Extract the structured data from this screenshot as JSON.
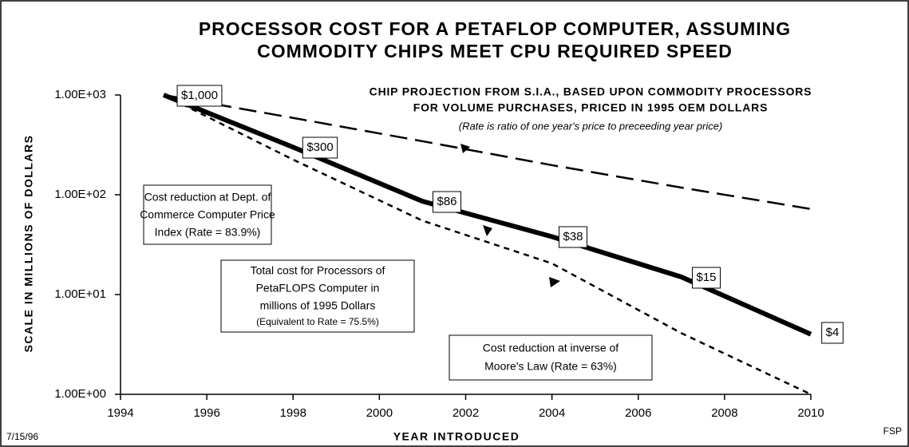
{
  "chart_data": {
    "type": "line",
    "title": [
      "PROCESSOR COST FOR A PETAFLOP COMPUTER, ASSUMING",
      "COMMODITY CHIPS MEET CPU REQUIRED SPEED"
    ],
    "x_label": "YEAR  INTRODUCED",
    "y_label": "SCALE IN MILLIONS OF DOLLARS",
    "date": "7/15/96",
    "author": "FSP",
    "subtitle": [
      "CHIP PROJECTION FROM S.I.A., BASED UPON COMMODITY PROCESSORS",
      "FOR VOLUME PURCHASES, PRICED IN 1995 OEM DOLLARS"
    ],
    "note": "(Rate is ratio of one year's price to preceeding year price)",
    "annotations": [
      {
        "lines": [
          "Cost reduction at Dept. of",
          "Commerce Computer Price",
          "Index  (Rate = 83.9%)"
        ]
      },
      {
        "lines": [
          "Total cost for Processors of",
          "PetaFLOPS Computer in",
          "millions of 1995 Dollars",
          "(Equivalent to Rate = 75.5%)"
        ]
      },
      {
        "lines": [
          "Cost reduction at inverse of",
          "Moore's Law  (Rate = 63%)"
        ]
      }
    ],
    "xlim": [
      1994,
      2010
    ],
    "xticks": [
      1994,
      1996,
      1998,
      2000,
      2002,
      2004,
      2006,
      2008,
      2010
    ],
    "ylim": [
      1,
      1000
    ],
    "log_y": true,
    "yticks": [
      {
        "value": 1,
        "label": "1.00E+00"
      },
      {
        "value": 10,
        "label": "1.00E+01"
      },
      {
        "value": 100,
        "label": "1.00E+02"
      },
      {
        "value": 1000,
        "label": "1.00E+03"
      }
    ],
    "series": [
      {
        "color": "#000000",
        "dash": "solid",
        "width": 6,
        "x": [
          1995,
          1998,
          2001,
          2004,
          2007,
          2010
        ],
        "values": [
          1000,
          300,
          86,
          38,
          15,
          4
        ],
        "value_labels": [
          "$1,000",
          "$300",
          "$86",
          "$38",
          "$15",
          "$4"
        ]
      },
      {
        "color": "#000000",
        "dash": "long",
        "width": 2.5,
        "x": [
          1995,
          1998,
          2001,
          2004,
          2007,
          2010
        ],
        "values": [
          1000,
          589,
          344,
          198,
          118,
          72
        ]
      },
      {
        "color": "#000000",
        "dash": "short",
        "width": 2.5,
        "x": [
          1995,
          1998,
          2001,
          2004,
          2007,
          2010
        ],
        "values": [
          1000,
          225,
          55,
          20.5,
          4.1,
          1
        ]
      }
    ]
  }
}
